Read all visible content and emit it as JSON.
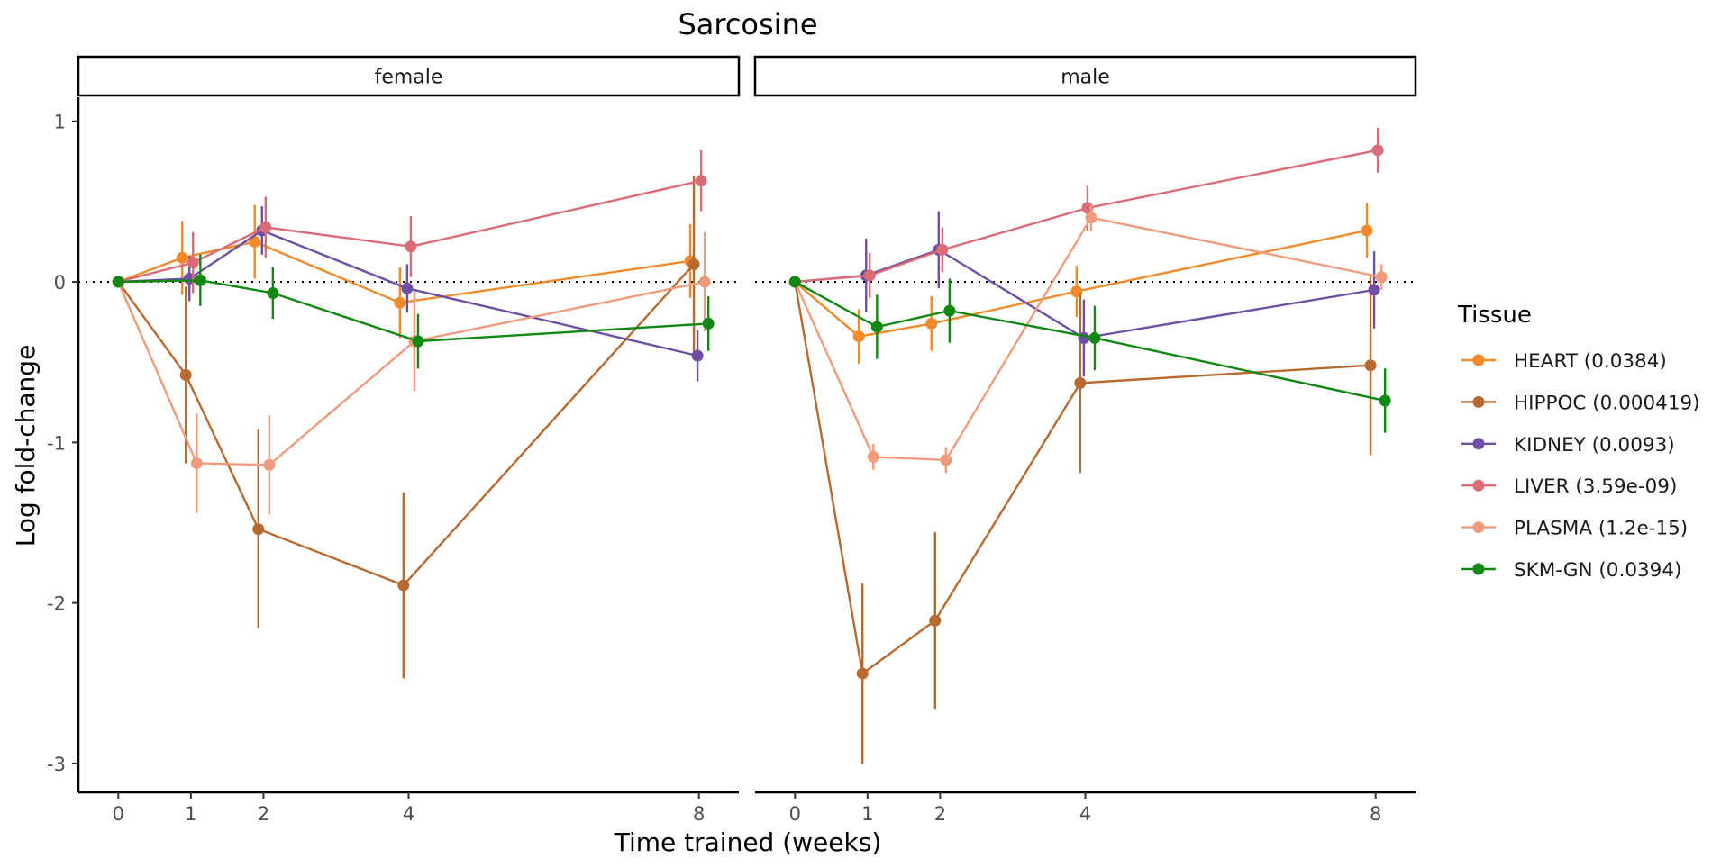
{
  "chart_data": {
    "type": "line",
    "title": "Sarcosine",
    "xlabel": "Time trained (weeks)",
    "ylabel": "Log fold-change",
    "x_ticks": [
      0,
      1,
      2,
      4,
      8
    ],
    "y_ticks": [
      1,
      0,
      -1,
      -2,
      -3
    ],
    "xlim": [
      -0.55,
      8.55
    ],
    "ylim": [
      -3.18,
      1.15
    ],
    "reference_line": 0,
    "grid": false,
    "legend": {
      "title": "Tissue",
      "placement": "right"
    },
    "colors": {
      "HEART": "#F28A2B",
      "HIPPOC": "#B8692F",
      "KIDNEY": "#6E4FA3",
      "LIVER": "#DB6B77",
      "PLASMA": "#F09B7D",
      "SKM-GN": "#118811"
    },
    "panels": [
      {
        "label": "female",
        "series": [
          {
            "name": "HEART (0.0384)",
            "tissue": "HEART",
            "x": [
              0,
              1,
              2,
              4,
              8
            ],
            "y": [
              0,
              0.15,
              0.25,
              -0.13,
              0.13
            ],
            "err": [
              0,
              0.23,
              0.23,
              0.22,
              0.23
            ]
          },
          {
            "name": "HIPPOC (0.000419)",
            "tissue": "HIPPOC",
            "x": [
              0,
              1,
              2,
              4,
              8
            ],
            "y": [
              0,
              -0.58,
              -1.54,
              -1.89,
              0.11
            ],
            "err": [
              0,
              0.55,
              0.62,
              0.58,
              0.55
            ]
          },
          {
            "name": "KIDNEY (0.0093)",
            "tissue": "KIDNEY",
            "x": [
              0,
              1,
              2,
              4,
              8
            ],
            "y": [
              0,
              0.02,
              0.32,
              -0.04,
              -0.46
            ],
            "err": [
              0,
              0.14,
              0.15,
              0.15,
              0.16
            ]
          },
          {
            "name": "LIVER (3.59e-09)",
            "tissue": "LIVER",
            "x": [
              0,
              1,
              2,
              4,
              8
            ],
            "y": [
              0,
              0.12,
              0.34,
              0.22,
              0.63
            ],
            "err": [
              0,
              0.19,
              0.19,
              0.19,
              0.19
            ]
          },
          {
            "name": "PLASMA (1.2e-15)",
            "tissue": "PLASMA",
            "x": [
              0,
              1,
              2,
              4,
              8
            ],
            "y": [
              0,
              -1.13,
              -1.14,
              -0.37,
              0.0
            ],
            "err": [
              0,
              0.31,
              0.31,
              0.31,
              0.31
            ]
          },
          {
            "name": "SKM-GN (0.0394)",
            "tissue": "SKM-GN",
            "x": [
              0,
              1,
              2,
              4,
              8
            ],
            "y": [
              0,
              0.01,
              -0.07,
              -0.37,
              -0.26
            ],
            "err": [
              0,
              0.16,
              0.16,
              0.17,
              0.17
            ]
          }
        ]
      },
      {
        "label": "male",
        "series": [
          {
            "name": "HEART (0.0384)",
            "tissue": "HEART",
            "x": [
              0,
              1,
              2,
              4,
              8
            ],
            "y": [
              0,
              -0.34,
              -0.26,
              -0.06,
              0.32
            ],
            "err": [
              0,
              0.17,
              0.17,
              0.16,
              0.17
            ]
          },
          {
            "name": "HIPPOC (0.000419)",
            "tissue": "HIPPOC",
            "x": [
              0,
              1,
              2,
              4,
              8
            ],
            "y": [
              0,
              -2.44,
              -2.11,
              -0.63,
              -0.52
            ],
            "err": [
              0,
              0.56,
              0.55,
              0.56,
              0.56
            ]
          },
          {
            "name": "KIDNEY (0.0093)",
            "tissue": "KIDNEY",
            "x": [
              0,
              1,
              2,
              4,
              8
            ],
            "y": [
              0,
              0.04,
              0.2,
              -0.35,
              -0.05
            ],
            "err": [
              0,
              0.23,
              0.24,
              0.24,
              0.24
            ]
          },
          {
            "name": "LIVER (3.59e-09)",
            "tissue": "LIVER",
            "x": [
              0,
              1,
              2,
              4,
              8
            ],
            "y": [
              0,
              0.04,
              0.2,
              0.46,
              0.82
            ],
            "err": [
              0,
              0.14,
              0.14,
              0.14,
              0.14
            ]
          },
          {
            "name": "PLASMA (1.2e-15)",
            "tissue": "PLASMA",
            "x": [
              0,
              1,
              2,
              4,
              8
            ],
            "y": [
              0,
              -1.09,
              -1.11,
              0.4,
              0.03
            ],
            "err": [
              0,
              0.08,
              0.08,
              0.08,
              0.08
            ]
          },
          {
            "name": "SKM-GN (0.0394)",
            "tissue": "SKM-GN",
            "x": [
              0,
              1,
              2,
              4,
              8
            ],
            "y": [
              0,
              -0.28,
              -0.18,
              -0.35,
              -0.74
            ],
            "err": [
              0,
              0.2,
              0.2,
              0.2,
              0.2
            ]
          }
        ]
      }
    ]
  }
}
